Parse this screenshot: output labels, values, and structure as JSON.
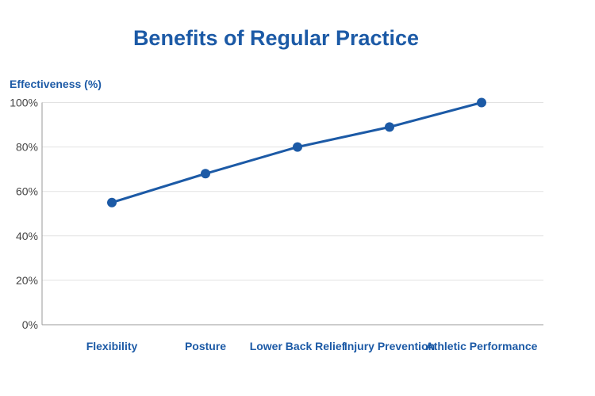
{
  "chart_data": {
    "type": "line",
    "title": "Benefits of Regular Practice",
    "xlabel": "",
    "ylabel": "Effectiveness (%)",
    "categories": [
      "Flexibility",
      "Posture",
      "Lower Back Relief",
      "Injury Prevention",
      "Athletic Performance"
    ],
    "values": [
      55,
      68,
      80,
      89,
      100
    ],
    "ylim": [
      0,
      100
    ],
    "yticks": [
      0,
      20,
      40,
      60,
      80,
      100
    ],
    "ytick_labels": [
      "0%",
      "20%",
      "40%",
      "60%",
      "80%",
      "100%"
    ],
    "grid": true,
    "legend": "none",
    "colors": {
      "line": "#1c5aa6",
      "title": "#1c5aa6",
      "grid": "#e2e2e2"
    }
  }
}
